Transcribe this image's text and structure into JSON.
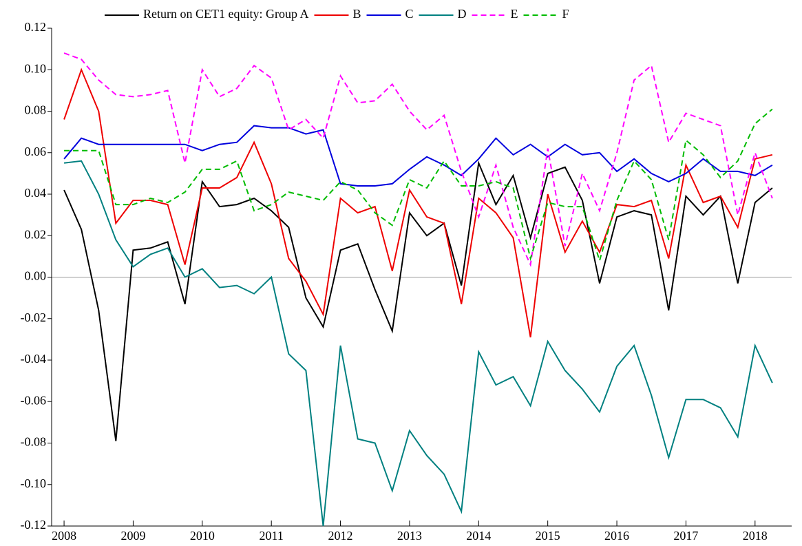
{
  "chart_data": {
    "type": "line",
    "x": [
      2008,
      2008.25,
      2008.5,
      2008.75,
      2009,
      2009.25,
      2009.5,
      2009.75,
      2010,
      2010.25,
      2010.5,
      2010.75,
      2011,
      2011.25,
      2011.5,
      2011.75,
      2012,
      2012.25,
      2012.5,
      2012.75,
      2013,
      2013.25,
      2013.5,
      2013.75,
      2014,
      2014.25,
      2014.5,
      2014.75,
      2015,
      2015.25,
      2015.5,
      2015.75,
      2016,
      2016.25,
      2016.5,
      2016.75,
      2017,
      2017.25,
      2017.5,
      2017.75,
      2018,
      2018.25
    ],
    "series": [
      {
        "name": "Return on CET1 equity: Group A",
        "color": "#000000",
        "dash": false,
        "values": [
          0.042,
          0.023,
          -0.016,
          -0.079,
          0.013,
          0.014,
          0.017,
          -0.013,
          0.046,
          0.034,
          0.035,
          0.038,
          0.032,
          0.024,
          -0.01,
          -0.024,
          0.013,
          0.016,
          -0.006,
          -0.026,
          0.031,
          0.02,
          0.026,
          -0.004,
          0.055,
          0.035,
          0.049,
          0.019,
          0.05,
          0.053,
          0.037,
          -0.003,
          0.029,
          0.032,
          0.03,
          -0.016,
          0.039,
          0.03,
          0.039,
          -0.003,
          0.036,
          0.043
        ]
      },
      {
        "name": "B",
        "color": "#ee0000",
        "dash": false,
        "values": [
          0.076,
          0.1,
          0.08,
          0.026,
          0.037,
          0.037,
          0.035,
          0.006,
          0.043,
          0.043,
          0.048,
          0.065,
          0.045,
          0.009,
          -0.002,
          -0.018,
          0.038,
          0.031,
          0.034,
          0.003,
          0.042,
          0.029,
          0.026,
          -0.013,
          0.038,
          0.031,
          0.019,
          -0.029,
          0.04,
          0.012,
          0.027,
          0.012,
          0.035,
          0.034,
          0.037,
          0.009,
          0.054,
          0.036,
          0.039,
          0.024,
          0.057,
          0.059
        ]
      },
      {
        "name": "C",
        "color": "#0000dd",
        "dash": false,
        "values": [
          0.057,
          0.067,
          0.064,
          0.064,
          0.064,
          0.064,
          0.064,
          0.064,
          0.061,
          0.064,
          0.065,
          0.073,
          0.072,
          0.072,
          0.069,
          0.071,
          0.045,
          0.044,
          0.044,
          0.045,
          0.052,
          0.058,
          0.054,
          0.049,
          0.057,
          0.067,
          0.059,
          0.064,
          0.058,
          0.064,
          0.059,
          0.06,
          0.051,
          0.057,
          0.05,
          0.046,
          0.05,
          0.057,
          0.051,
          0.051,
          0.049,
          0.054
        ]
      },
      {
        "name": "D",
        "color": "#008080",
        "dash": false,
        "values": [
          0.055,
          0.056,
          0.04,
          0.018,
          0.005,
          0.011,
          0.014,
          0.0,
          0.004,
          -0.005,
          -0.004,
          -0.008,
          0.0,
          -0.037,
          -0.045,
          -0.12,
          -0.033,
          -0.078,
          -0.08,
          -0.103,
          -0.074,
          -0.086,
          -0.095,
          -0.113,
          -0.036,
          -0.052,
          -0.048,
          -0.062,
          -0.031,
          -0.045,
          -0.054,
          -0.065,
          -0.043,
          -0.033,
          -0.057,
          -0.087,
          -0.059,
          -0.059,
          -0.063,
          -0.077,
          -0.033,
          -0.051
        ]
      },
      {
        "name": "E",
        "color": "#ff00ff",
        "dash": true,
        "values": [
          0.108,
          0.105,
          0.095,
          0.088,
          0.087,
          0.088,
          0.09,
          0.055,
          0.1,
          0.087,
          0.091,
          0.102,
          0.096,
          0.071,
          0.076,
          0.067,
          0.097,
          0.084,
          0.085,
          0.093,
          0.08,
          0.071,
          0.078,
          0.051,
          0.029,
          0.054,
          0.024,
          0.006,
          0.062,
          0.015,
          0.05,
          0.032,
          0.06,
          0.095,
          0.102,
          0.065,
          0.079,
          0.076,
          0.073,
          0.03,
          0.06,
          0.038
        ]
      },
      {
        "name": "F",
        "color": "#00bb00",
        "dash": true,
        "values": [
          0.061,
          0.061,
          0.061,
          0.035,
          0.035,
          0.038,
          0.036,
          0.041,
          0.052,
          0.052,
          0.056,
          0.032,
          0.035,
          0.041,
          0.039,
          0.037,
          0.046,
          0.042,
          0.031,
          0.025,
          0.047,
          0.043,
          0.056,
          0.044,
          0.044,
          0.046,
          0.043,
          0.009,
          0.036,
          0.034,
          0.034,
          0.008,
          0.037,
          0.056,
          0.047,
          0.018,
          0.066,
          0.059,
          0.048,
          0.056,
          0.074,
          0.081
        ]
      }
    ],
    "xlim": [
      2007.82,
      2018.53
    ],
    "xticks": [
      2008,
      2009,
      2010,
      2011,
      2012,
      2013,
      2014,
      2015,
      2016,
      2017,
      2018
    ],
    "ylim": [
      -0.12,
      0.12
    ],
    "yticks": [
      {
        "value": -0.12,
        "label": "-0.12"
      },
      {
        "value": -0.1,
        "label": "-0.10"
      },
      {
        "value": -0.08,
        "label": "-0.08"
      },
      {
        "value": -0.06,
        "label": "-0.06"
      },
      {
        "value": -0.04,
        "label": "-0.04"
      },
      {
        "value": -0.02,
        "label": "-0.02"
      },
      {
        "value": 0,
        "label": "0.00"
      },
      {
        "value": 0.02,
        "label": "0.02"
      },
      {
        "value": 0.04,
        "label": "0.04"
      },
      {
        "value": 0.06,
        "label": "0.06"
      },
      {
        "value": 0.08,
        "label": "0.08"
      },
      {
        "value": 0.1,
        "label": "0.10"
      },
      {
        "value": 0.12,
        "label": "0.12"
      }
    ],
    "zero_line": true,
    "legend": "top"
  }
}
